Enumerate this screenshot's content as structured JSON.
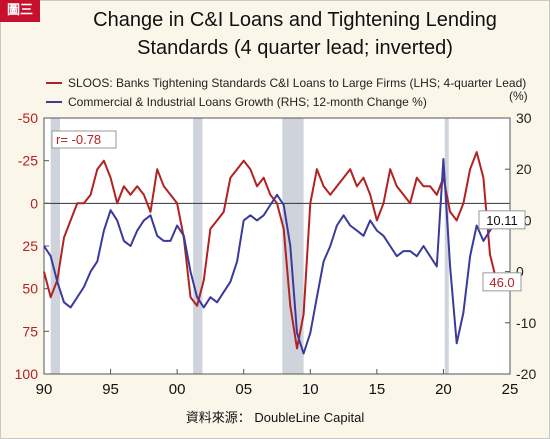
{
  "badge": "圖三",
  "source": "資料來源： DoubleLine Capital",
  "chart_data": {
    "type": "line",
    "title_line1": "Change in C&I Loans and Tightening Lending",
    "title_line2": "Standards (4 quarter lead; inverted)",
    "right_unit": "(%)",
    "left_ticks": [
      "-50",
      "-25",
      "0",
      "25",
      "50",
      "75",
      "100"
    ],
    "right_ticks": [
      "30",
      "20",
      "10",
      "0",
      "-10",
      "-20"
    ],
    "x_ticks": [
      "90",
      "95",
      "00",
      "05",
      "10",
      "15",
      "20",
      "25"
    ],
    "left_axis": {
      "min": -50,
      "max": 100,
      "inverted": true
    },
    "right_axis": {
      "min": -20,
      "max": 30
    },
    "x_range": [
      1990,
      2025
    ],
    "grid": false,
    "legend_position": "top-left",
    "annotation": "r= -0.78",
    "recessions": [
      [
        1990.5,
        1991.2
      ],
      [
        2001.2,
        2001.9
      ],
      [
        2007.9,
        2009.5
      ],
      [
        2020.1,
        2020.4
      ]
    ],
    "colors": {
      "sloos": "#b22222",
      "ci": "#3b3a9b",
      "recession": "#cfd4dc"
    },
    "series": [
      {
        "name": "SLOOS: Banks Tightening Standards C&I Loans to Large Firms (LHS; 4-quarter Lead)",
        "axis": "left",
        "end_label": "46.0",
        "x": [
          1990.0,
          1990.5,
          1991.0,
          1991.5,
          1992.0,
          1992.5,
          1993.0,
          1993.5,
          1994.0,
          1994.5,
          1995.0,
          1995.5,
          1996.0,
          1996.5,
          1997.0,
          1997.5,
          1998.0,
          1998.5,
          1999.0,
          1999.5,
          2000.0,
          2000.5,
          2001.0,
          2001.5,
          2002.0,
          2002.5,
          2003.0,
          2003.5,
          2004.0,
          2004.5,
          2005.0,
          2005.5,
          2006.0,
          2006.5,
          2007.0,
          2007.5,
          2008.0,
          2008.5,
          2009.0,
          2009.5,
          2010.0,
          2010.5,
          2011.0,
          2011.5,
          2012.0,
          2012.5,
          2013.0,
          2013.5,
          2014.0,
          2014.5,
          2015.0,
          2015.5,
          2016.0,
          2016.5,
          2017.0,
          2017.5,
          2018.0,
          2018.5,
          2019.0,
          2019.5,
          2020.0,
          2020.5,
          2021.0,
          2021.5,
          2022.0,
          2022.5,
          2023.0,
          2023.5,
          2024.0
        ],
        "values": [
          40,
          55,
          45,
          20,
          10,
          0,
          0,
          -5,
          -20,
          -25,
          -15,
          0,
          -10,
          -5,
          -10,
          -5,
          5,
          -20,
          -10,
          -5,
          0,
          20,
          55,
          60,
          45,
          15,
          10,
          5,
          -15,
          -20,
          -25,
          -20,
          -10,
          -15,
          -5,
          0,
          15,
          60,
          85,
          65,
          0,
          -20,
          -10,
          -5,
          -10,
          -15,
          -20,
          -10,
          -15,
          -5,
          10,
          0,
          -20,
          -10,
          -5,
          0,
          -15,
          -10,
          -10,
          -5,
          -15,
          5,
          10,
          0,
          -20,
          -30,
          -15,
          30,
          46
        ]
      },
      {
        "name": "Commercial & Industrial Loans Growth (RHS; 12-month Change %)",
        "axis": "right",
        "end_label": "10.11",
        "x": [
          1990.0,
          1990.5,
          1991.0,
          1991.5,
          1992.0,
          1992.5,
          1993.0,
          1993.5,
          1994.0,
          1994.5,
          1995.0,
          1995.5,
          1996.0,
          1996.5,
          1997.0,
          1997.5,
          1998.0,
          1998.5,
          1999.0,
          1999.5,
          2000.0,
          2000.5,
          2001.0,
          2001.5,
          2002.0,
          2002.5,
          2003.0,
          2003.5,
          2004.0,
          2004.5,
          2005.0,
          2005.5,
          2006.0,
          2006.5,
          2007.0,
          2007.5,
          2008.0,
          2008.5,
          2009.0,
          2009.5,
          2010.0,
          2010.5,
          2011.0,
          2011.5,
          2012.0,
          2012.5,
          2013.0,
          2013.5,
          2014.0,
          2014.5,
          2015.0,
          2015.5,
          2016.0,
          2016.5,
          2017.0,
          2017.5,
          2018.0,
          2018.5,
          2019.0,
          2019.5,
          2020.0,
          2020.5,
          2021.0,
          2021.5,
          2022.0,
          2022.5,
          2023.0,
          2023.5,
          2024.0
        ],
        "values": [
          5,
          3,
          -2,
          -6,
          -7,
          -5,
          -3,
          0,
          2,
          8,
          12,
          10,
          6,
          5,
          8,
          10,
          11,
          7,
          6,
          6,
          9,
          7,
          0,
          -5,
          -7,
          -5,
          -6,
          -4,
          -2,
          2,
          10,
          11,
          10,
          11,
          13,
          15,
          13,
          5,
          -12,
          -16,
          -12,
          -5,
          2,
          5,
          9,
          11,
          9,
          8,
          7,
          10,
          8,
          7,
          5,
          3,
          4,
          4,
          3,
          5,
          3,
          1,
          22,
          1,
          -14,
          -8,
          3,
          9,
          6,
          8,
          10.11
        ]
      }
    ]
  }
}
